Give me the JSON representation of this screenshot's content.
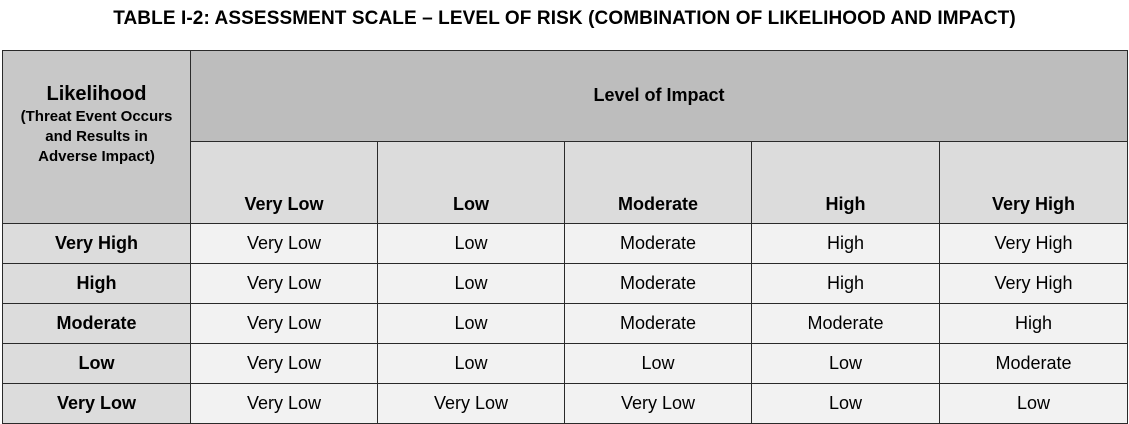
{
  "title": "TABLE I-2: ASSESSMENT SCALE – LEVEL OF RISK (COMBINATION OF LIKELIHOOD AND IMPACT)",
  "corner": {
    "main": "Likelihood",
    "sub_lines": [
      "(Threat Event Occurs",
      "and Results in",
      "Adverse Impact)"
    ]
  },
  "impact_header": "Level of Impact",
  "columns": [
    "Very Low",
    "Low",
    "Moderate",
    "High",
    "Very High"
  ],
  "rows": [
    {
      "likelihood": "Very High",
      "values": [
        "Very Low",
        "Low",
        "Moderate",
        "High",
        "Very High"
      ]
    },
    {
      "likelihood": "High",
      "values": [
        "Very Low",
        "Low",
        "Moderate",
        "High",
        "Very High"
      ]
    },
    {
      "likelihood": "Moderate",
      "values": [
        "Very Low",
        "Low",
        "Moderate",
        "Moderate",
        "High"
      ]
    },
    {
      "likelihood": "Low",
      "values": [
        "Very Low",
        "Low",
        "Low",
        "Low",
        "Moderate"
      ]
    },
    {
      "likelihood": "Very Low",
      "values": [
        "Very Low",
        "Very Low",
        "Very Low",
        "Low",
        "Low"
      ]
    }
  ]
}
